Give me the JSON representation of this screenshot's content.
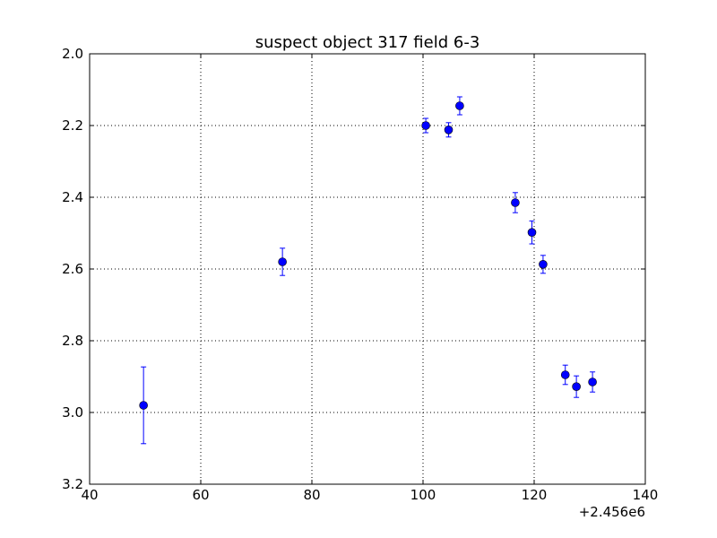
{
  "chart_data": {
    "type": "scatter",
    "title": "suspect object 317 field 6-3",
    "xlabel": "",
    "ylabel": "",
    "x_offset_label": "+2.456e6",
    "xlim": [
      40,
      140
    ],
    "ylim": [
      3.2,
      2.0
    ],
    "y_inverted": true,
    "x_ticks": [
      40,
      60,
      80,
      100,
      120,
      140
    ],
    "x_tick_labels": [
      "40",
      "60",
      "80",
      "100",
      "120",
      "140"
    ],
    "y_ticks": [
      2.0,
      2.2,
      2.4,
      2.6,
      2.8,
      3.0,
      3.2
    ],
    "y_tick_labels": [
      "2.0",
      "2.2",
      "2.4",
      "2.6",
      "2.8",
      "3.0",
      "3.2"
    ],
    "grid": true,
    "legend": "none",
    "marker_color": "#0000ff",
    "points": [
      {
        "x": 49.7,
        "y": 2.98,
        "err": 0.107
      },
      {
        "x": 74.7,
        "y": 2.58,
        "err": 0.038
      },
      {
        "x": 100.5,
        "y": 2.2,
        "err": 0.02
      },
      {
        "x": 104.6,
        "y": 2.212,
        "err": 0.02
      },
      {
        "x": 106.6,
        "y": 2.145,
        "err": 0.025
      },
      {
        "x": 116.6,
        "y": 2.415,
        "err": 0.028
      },
      {
        "x": 119.6,
        "y": 2.498,
        "err": 0.032
      },
      {
        "x": 121.6,
        "y": 2.587,
        "err": 0.025
      },
      {
        "x": 125.6,
        "y": 2.895,
        "err": 0.027
      },
      {
        "x": 127.6,
        "y": 2.928,
        "err": 0.03
      },
      {
        "x": 130.5,
        "y": 2.915,
        "err": 0.028
      }
    ]
  }
}
